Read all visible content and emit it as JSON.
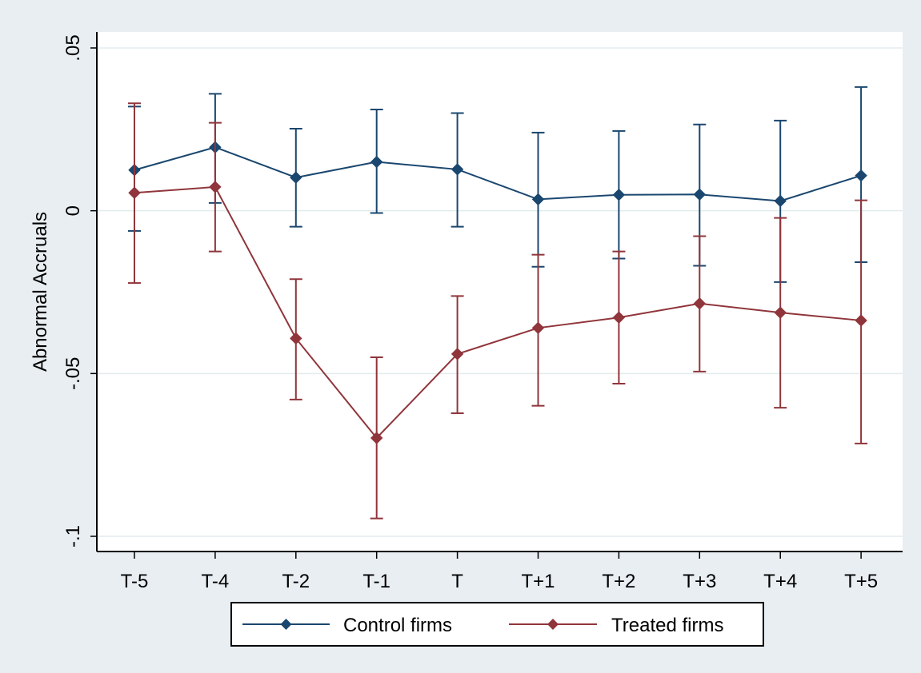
{
  "colors": {
    "outer_background": "#e9eef2",
    "plot_background": "#ffffff",
    "grid": "#e4ebef",
    "axis": "#000000",
    "control": "#1a476f",
    "treated": "#90353b"
  },
  "chart_data": {
    "type": "line",
    "ylabel": "Abnormal Accruals",
    "categories": [
      "T-5",
      "T-4",
      "T-2",
      "T-1",
      "T",
      "T+1",
      "T+2",
      "T+3",
      "T+4",
      "T+5"
    ],
    "ylim": [
      -0.1,
      0.05
    ],
    "yticks": [
      -0.1,
      -0.05,
      0,
      0.05
    ],
    "ytick_labels": [
      "-.1",
      "-.05",
      "0",
      ".05"
    ],
    "grid": true,
    "legend": {
      "position": "bottom",
      "columns": 2
    },
    "series": [
      {
        "name": "Control firms",
        "color": "#1a476f",
        "values": [
          0.0125,
          0.0195,
          0.0102,
          0.015,
          0.0127,
          0.0035,
          0.0049,
          0.005,
          0.003,
          0.0108
        ],
        "ci_low": [
          -0.0062,
          0.0024,
          -0.0049,
          -0.0007,
          -0.0049,
          -0.0172,
          -0.0147,
          -0.0169,
          -0.0219,
          -0.0158
        ],
        "ci_high": [
          0.032,
          0.0359,
          0.0252,
          0.0311,
          0.03,
          0.024,
          0.0245,
          0.0265,
          0.0277,
          0.038
        ]
      },
      {
        "name": "Treated firms",
        "color": "#90353b",
        "values": [
          0.0055,
          0.0073,
          -0.0392,
          -0.0698,
          -0.044,
          -0.036,
          -0.0328,
          -0.0285,
          -0.0313,
          -0.0337
        ],
        "ci_low": [
          -0.0222,
          -0.0125,
          -0.058,
          -0.0945,
          -0.0622,
          -0.0599,
          -0.0531,
          -0.0494,
          -0.0605,
          -0.0715
        ],
        "ci_high": [
          0.033,
          0.027,
          -0.021,
          -0.045,
          -0.0262,
          -0.0135,
          -0.0125,
          -0.0078,
          -0.0022,
          0.0032
        ]
      }
    ]
  }
}
